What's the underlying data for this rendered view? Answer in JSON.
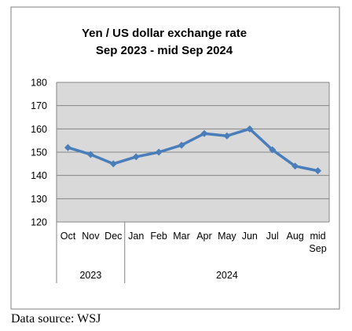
{
  "chart_data": {
    "type": "line",
    "title": "Yen / US dollar exchange rate",
    "subtitle": "Sep 2023 - mid Sep 2024",
    "categories": [
      "Oct",
      "Nov",
      "Dec",
      "Jan",
      "Feb",
      "Mar",
      "Apr",
      "May",
      "Jun",
      "Jul",
      "Aug",
      "mid Sep"
    ],
    "groups": [
      {
        "label": "2023",
        "from": 0,
        "to": 2
      },
      {
        "label": "2024",
        "from": 3,
        "to": 11
      }
    ],
    "series": [
      {
        "values": [
          152,
          149,
          145,
          148,
          150,
          153,
          158,
          157,
          160,
          151,
          144,
          142
        ]
      }
    ],
    "ylim": [
      120,
      180
    ],
    "yticks": [
      120,
      130,
      140,
      150,
      160,
      170,
      180
    ],
    "grid": true,
    "colors": {
      "line": "#4a7ebb",
      "plot_bg": "#d9d9d9",
      "grid": "#868686"
    }
  },
  "source_note": "Data source: WSJ"
}
